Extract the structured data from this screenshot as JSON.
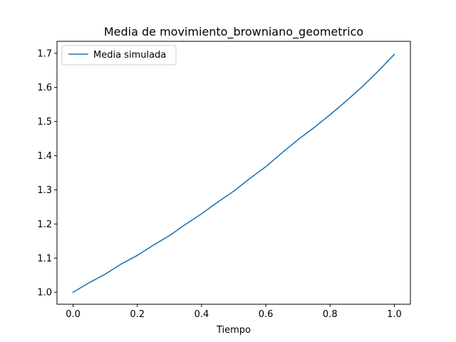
{
  "chart_data": {
    "type": "line",
    "title": "Media de movimiento_browniano_geometrico",
    "xlabel": "Tiempo",
    "ylabel": "",
    "xlim": [
      -0.05,
      1.05
    ],
    "ylim": [
      0.965,
      1.735
    ],
    "xticks": [
      "0.0",
      "0.2",
      "0.4",
      "0.6",
      "0.8",
      "1.0"
    ],
    "yticks": [
      "1.0",
      "1.1",
      "1.2",
      "1.3",
      "1.4",
      "1.5",
      "1.6",
      "1.7"
    ],
    "grid": false,
    "legend_position": "upper-left",
    "series": [
      {
        "name": "Media simulada",
        "color": "#1f77b4",
        "x": [
          0.0,
          0.05,
          0.1,
          0.15,
          0.2,
          0.25,
          0.3,
          0.35,
          0.4,
          0.45,
          0.5,
          0.55,
          0.6,
          0.65,
          0.7,
          0.75,
          0.8,
          0.85,
          0.9,
          0.95,
          1.0
        ],
        "y": [
          1.0,
          1.028,
          1.053,
          1.083,
          1.108,
          1.138,
          1.166,
          1.199,
          1.23,
          1.264,
          1.296,
          1.333,
          1.368,
          1.408,
          1.447,
          1.482,
          1.52,
          1.56,
          1.602,
          1.648,
          1.697
        ]
      }
    ]
  }
}
